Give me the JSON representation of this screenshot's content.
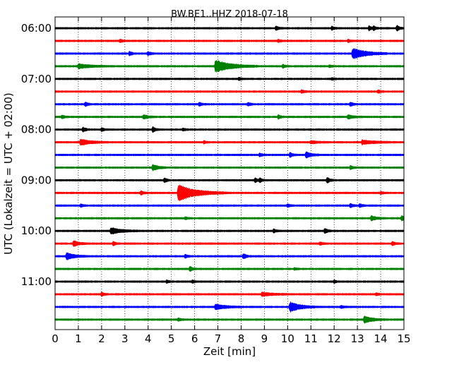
{
  "chart_data": {
    "type": "line",
    "title": "BW.BE1..HHZ 2018-07-18",
    "xlabel": "Zeit  [min]",
    "ylabel": "UTC (Lokalzeit = UTC + 02:00)",
    "xlim": [
      0,
      15
    ],
    "x_ticks": [
      "0",
      "1",
      "2",
      "3",
      "4",
      "5",
      "6",
      "7",
      "8",
      "9",
      "10",
      "11",
      "12",
      "13",
      "14",
      "15"
    ],
    "y_ticks": [
      {
        "label": "06:00",
        "row": 0
      },
      {
        "label": "07:00",
        "row": 4
      },
      {
        "label": "08:00",
        "row": 8
      },
      {
        "label": "09:00",
        "row": 12
      },
      {
        "label": "10:00",
        "row": 16
      },
      {
        "label": "11:00",
        "row": 20
      }
    ],
    "grid": "vertical-dotted",
    "row_interval_min": 15,
    "row_colors": [
      "#000000",
      "#ff0000",
      "#0000ff",
      "#008000"
    ],
    "traces": [
      {
        "start": "06:00",
        "events": [
          {
            "t": 9.5,
            "amp": 0.35,
            "dur": 0.1
          },
          {
            "t": 11.9,
            "amp": 0.25,
            "dur": 0.1
          },
          {
            "t": 13.5,
            "amp": 0.35,
            "dur": 0.1
          },
          {
            "t": 13.7,
            "amp": 0.3,
            "dur": 0.1
          },
          {
            "t": 14.7,
            "amp": 0.45,
            "dur": 0.1
          }
        ]
      },
      {
        "start": "06:15",
        "events": [
          {
            "t": 2.8,
            "amp": 0.25,
            "dur": 0.1
          },
          {
            "t": 9.6,
            "amp": 0.2,
            "dur": 0.1
          },
          {
            "t": 12.6,
            "amp": 0.2,
            "dur": 0.1
          }
        ]
      },
      {
        "start": "06:30",
        "events": [
          {
            "t": 3.2,
            "amp": 0.3,
            "dur": 0.1
          },
          {
            "t": 4.0,
            "amp": 0.3,
            "dur": 0.1
          },
          {
            "t": 12.8,
            "amp": 0.9,
            "dur": 0.5
          }
        ]
      },
      {
        "start": "06:45",
        "events": [
          {
            "t": 1.0,
            "amp": 0.35,
            "dur": 0.5
          },
          {
            "t": 6.9,
            "amp": 1.0,
            "dur": 0.6
          },
          {
            "t": 9.8,
            "amp": 0.25,
            "dur": 0.1
          },
          {
            "t": 11.8,
            "amp": 0.2,
            "dur": 0.1
          }
        ]
      },
      {
        "start": "07:00",
        "events": [
          {
            "t": 7.9,
            "amp": 0.2,
            "dur": 0.1
          },
          {
            "t": 11.9,
            "amp": 0.2,
            "dur": 0.1
          }
        ]
      },
      {
        "start": "07:15",
        "events": [
          {
            "t": 10.6,
            "amp": 0.25,
            "dur": 0.1
          },
          {
            "t": 13.9,
            "amp": 0.2,
            "dur": 0.1
          }
        ]
      },
      {
        "start": "07:30",
        "events": [
          {
            "t": 1.3,
            "amp": 0.35,
            "dur": 0.1
          },
          {
            "t": 6.2,
            "amp": 0.25,
            "dur": 0.1
          },
          {
            "t": 8.3,
            "amp": 0.25,
            "dur": 0.1
          },
          {
            "t": 12.7,
            "amp": 0.3,
            "dur": 0.1
          }
        ]
      },
      {
        "start": "07:45",
        "events": [
          {
            "t": 0.3,
            "amp": 0.25,
            "dur": 0.1
          },
          {
            "t": 3.8,
            "amp": 0.3,
            "dur": 0.2
          },
          {
            "t": 9.6,
            "amp": 0.3,
            "dur": 0.1
          },
          {
            "t": 12.6,
            "amp": 0.3,
            "dur": 0.2
          }
        ]
      },
      {
        "start": "08:00",
        "events": [
          {
            "t": 1.2,
            "amp": 0.4,
            "dur": 0.1
          },
          {
            "t": 2.0,
            "amp": 0.25,
            "dur": 0.1
          },
          {
            "t": 4.2,
            "amp": 0.4,
            "dur": 0.1
          },
          {
            "t": 5.5,
            "amp": 0.2,
            "dur": 0.1
          }
        ]
      },
      {
        "start": "08:15",
        "events": [
          {
            "t": 1.1,
            "amp": 0.45,
            "dur": 0.4
          },
          {
            "t": 6.4,
            "amp": 0.2,
            "dur": 0.1
          },
          {
            "t": 11.0,
            "amp": 0.2,
            "dur": 0.3
          },
          {
            "t": 13.2,
            "amp": 0.3,
            "dur": 0.5
          }
        ]
      },
      {
        "start": "08:30",
        "events": [
          {
            "t": 8.8,
            "amp": 0.25,
            "dur": 0.1
          },
          {
            "t": 10.1,
            "amp": 0.4,
            "dur": 0.1
          },
          {
            "t": 10.8,
            "amp": 0.5,
            "dur": 0.2
          }
        ]
      },
      {
        "start": "08:45",
        "events": [
          {
            "t": 4.2,
            "amp": 0.5,
            "dur": 0.2
          },
          {
            "t": 12.7,
            "amp": 0.25,
            "dur": 0.1
          }
        ]
      },
      {
        "start": "09:00",
        "events": [
          {
            "t": 4.7,
            "amp": 0.4,
            "dur": 0.1
          },
          {
            "t": 8.6,
            "amp": 0.35,
            "dur": 0.1
          },
          {
            "t": 8.8,
            "amp": 0.3,
            "dur": 0.1
          },
          {
            "t": 11.7,
            "amp": 0.45,
            "dur": 0.1
          }
        ]
      },
      {
        "start": "09:15",
        "events": [
          {
            "t": 3.7,
            "amp": 0.3,
            "dur": 0.1
          },
          {
            "t": 5.3,
            "amp": 1.3,
            "dur": 0.7
          },
          {
            "t": 14.0,
            "amp": 0.2,
            "dur": 0.1
          }
        ]
      },
      {
        "start": "09:30",
        "events": [
          {
            "t": 1.1,
            "amp": 0.2,
            "dur": 0.1
          },
          {
            "t": 10.0,
            "amp": 0.25,
            "dur": 0.1
          },
          {
            "t": 12.7,
            "amp": 0.3,
            "dur": 0.1
          },
          {
            "t": 13.1,
            "amp": 0.3,
            "dur": 0.1
          }
        ]
      },
      {
        "start": "09:45",
        "events": [
          {
            "t": 5.6,
            "amp": 0.2,
            "dur": 0.1
          },
          {
            "t": 13.6,
            "amp": 0.35,
            "dur": 0.2
          },
          {
            "t": 14.9,
            "amp": 0.35,
            "dur": 0.2
          }
        ]
      },
      {
        "start": "10:00",
        "events": [
          {
            "t": 2.4,
            "amp": 0.5,
            "dur": 0.4
          },
          {
            "t": 9.4,
            "amp": 0.3,
            "dur": 0.1
          },
          {
            "t": 11.6,
            "amp": 0.45,
            "dur": 0.1
          }
        ]
      },
      {
        "start": "10:15",
        "events": [
          {
            "t": 0.8,
            "amp": 0.45,
            "dur": 0.2
          },
          {
            "t": 2.5,
            "amp": 0.3,
            "dur": 0.1
          },
          {
            "t": 11.4,
            "amp": 0.2,
            "dur": 0.1
          },
          {
            "t": 14.5,
            "amp": 0.35,
            "dur": 0.1
          }
        ]
      },
      {
        "start": "10:30",
        "events": [
          {
            "t": 0.5,
            "amp": 0.55,
            "dur": 0.3
          },
          {
            "t": 5.6,
            "amp": 0.25,
            "dur": 0.1
          },
          {
            "t": 8.1,
            "amp": 0.45,
            "dur": 0.1
          }
        ]
      },
      {
        "start": "10:45",
        "events": [
          {
            "t": 5.8,
            "amp": 0.35,
            "dur": 0.1
          },
          {
            "t": 10.3,
            "amp": 0.2,
            "dur": 0.1
          }
        ]
      },
      {
        "start": "11:00",
        "events": [
          {
            "t": 4.8,
            "amp": 0.2,
            "dur": 0.1
          },
          {
            "t": 5.9,
            "amp": 0.2,
            "dur": 0.1
          },
          {
            "t": 12.0,
            "amp": 0.2,
            "dur": 0.1
          }
        ]
      },
      {
        "start": "11:15",
        "events": [
          {
            "t": 2.0,
            "amp": 0.3,
            "dur": 0.1
          },
          {
            "t": 8.9,
            "amp": 0.3,
            "dur": 0.4
          },
          {
            "t": 13.8,
            "amp": 0.2,
            "dur": 0.1
          }
        ]
      },
      {
        "start": "11:30",
        "events": [
          {
            "t": 6.9,
            "amp": 0.4,
            "dur": 0.4
          },
          {
            "t": 10.1,
            "amp": 0.8,
            "dur": 0.4
          },
          {
            "t": 12.3,
            "amp": 0.2,
            "dur": 0.1
          }
        ]
      },
      {
        "start": "11:45",
        "events": [
          {
            "t": 5.3,
            "amp": 0.25,
            "dur": 0.1
          },
          {
            "t": 13.3,
            "amp": 0.55,
            "dur": 0.3
          }
        ]
      }
    ]
  }
}
